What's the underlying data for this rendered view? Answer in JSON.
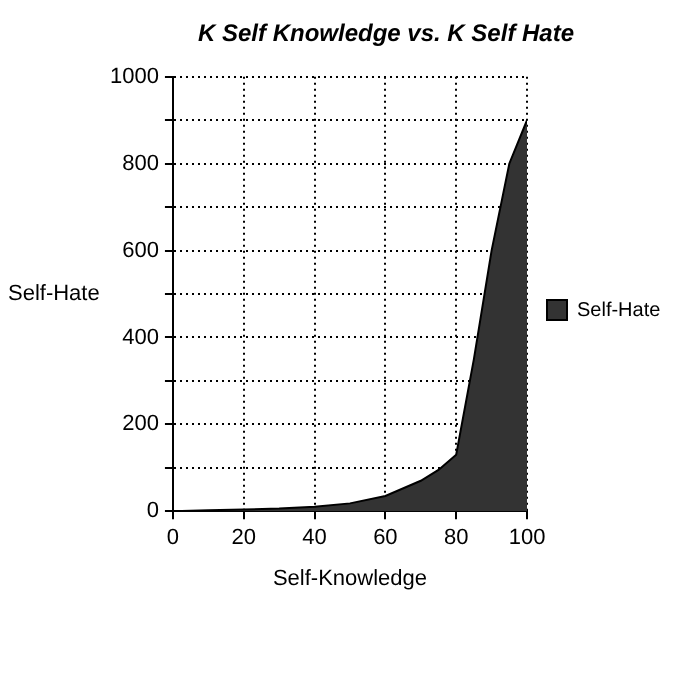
{
  "chart_data": {
    "type": "area",
    "title": "K Self Knowledge vs. K Self Hate",
    "xlabel": "Self-Knowledge",
    "ylabel": "Self-Hate",
    "x": [
      0,
      10,
      20,
      30,
      40,
      50,
      60,
      70,
      75,
      80,
      85,
      90,
      95,
      100
    ],
    "series": [
      {
        "name": "Self-Hate",
        "color": "#333333",
        "values": [
          0,
          2,
          4,
          6,
          10,
          18,
          35,
          70,
          95,
          130,
          350,
          600,
          800,
          900
        ]
      }
    ],
    "xlim": [
      0,
      100
    ],
    "xticks": [
      0,
      20,
      40,
      60,
      80,
      100
    ],
    "ylim": [
      0,
      1000
    ],
    "yticks": [
      0,
      {
        "value": 100,
        "label": null
      },
      200,
      {
        "value": 300,
        "label": null
      },
      400,
      {
        "value": 500,
        "label": null
      },
      600,
      {
        "value": 700,
        "label": null
      },
      800,
      {
        "value": 900,
        "label": null
      },
      1000
    ],
    "grid": true,
    "legend": "right"
  }
}
